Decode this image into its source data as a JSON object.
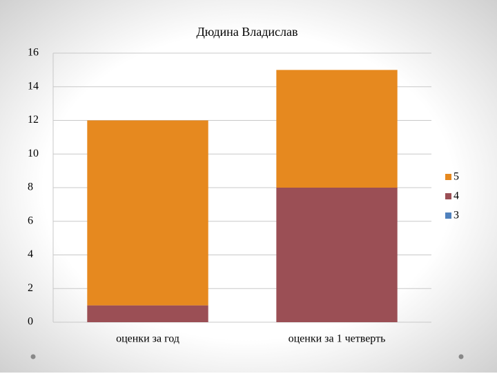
{
  "chart_data": {
    "type": "bar",
    "stacked": true,
    "title": "Дюдина Владислав",
    "categories": [
      "оценки за год",
      "оценки за 1 четверть"
    ],
    "series": [
      {
        "name": "3",
        "color": "#4f81bd",
        "values": [
          0,
          0
        ]
      },
      {
        "name": "4",
        "color": "#9b4f55",
        "values": [
          1,
          8
        ]
      },
      {
        "name": "5",
        "color": "#e6891f",
        "values": [
          11,
          7
        ]
      }
    ],
    "ylim": [
      0,
      16
    ],
    "yticks": [
      0,
      2,
      4,
      6,
      8,
      10,
      12,
      14,
      16
    ],
    "grid": true,
    "legend": "right"
  }
}
